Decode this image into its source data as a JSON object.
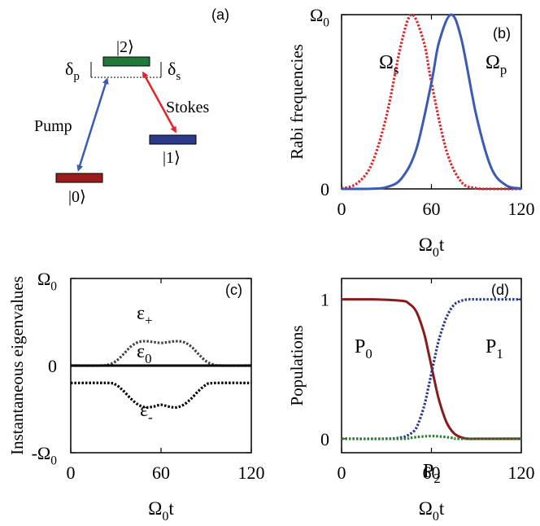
{
  "panel_a": {
    "panel_label": "(a)",
    "level_2": "|2⟩",
    "level_1": "|1⟩",
    "level_0": "|0⟩",
    "delta_p": "δ",
    "delta_p_sub": "p",
    "delta_s": "δ",
    "delta_s_sub": "s",
    "pump_label": "Pump",
    "stokes_label": "Stokes",
    "colors": {
      "level_2": "#1f7a3a",
      "level_1": "#2b3a8f",
      "level_0": "#9b1c1c",
      "pump_arrow": "#3a5bb5",
      "stokes_arrow": "#e0252b"
    }
  },
  "chart_data": [
    {
      "panel": "b",
      "panel_label": "(b)",
      "type": "line",
      "xlabel": "Ω",
      "xlabel_sub": "0",
      "xlabel_tail": "t",
      "ylabel": "Rabi frequencies",
      "xlim": [
        0,
        120
      ],
      "ylim": [
        0,
        1
      ],
      "xticks": [
        0,
        60,
        120
      ],
      "yticks": [
        {
          "value": 0,
          "label": "0"
        },
        {
          "value": 1,
          "label": "Ω",
          "sub": "0"
        }
      ],
      "series": [
        {
          "name": "Ω",
          "name_sub": "s",
          "style": "dotted",
          "color": "#e0252b",
          "x": [
            0,
            10,
            20,
            30,
            40,
            47,
            55,
            60,
            70,
            80,
            90,
            100,
            110,
            120
          ],
          "y": [
            0.003,
            0.03,
            0.14,
            0.42,
            0.84,
            1.0,
            0.84,
            0.61,
            0.22,
            0.04,
            0.004,
            0.0,
            0.0,
            0.0
          ]
        },
        {
          "name": "Ω",
          "name_sub": "p",
          "style": "solid",
          "color": "#3a5bb5",
          "x": [
            0,
            10,
            20,
            30,
            40,
            50,
            60,
            65,
            73,
            80,
            90,
            100,
            110,
            120
          ],
          "y": [
            0.0,
            0.0,
            0.001,
            0.01,
            0.06,
            0.23,
            0.61,
            0.84,
            1.0,
            0.86,
            0.42,
            0.12,
            0.02,
            0.003
          ]
        }
      ]
    },
    {
      "panel": "c",
      "panel_label": "(c)",
      "type": "line",
      "xlabel": "Ω",
      "xlabel_sub": "0",
      "xlabel_tail": "t",
      "ylabel": "Instantaneous eigenvalues",
      "xlim": [
        0,
        120
      ],
      "ylim": [
        -1,
        1
      ],
      "xticks": [
        0,
        60,
        120
      ],
      "yticks": [
        {
          "value": -1,
          "label": "-Ω",
          "sub": "0"
        },
        {
          "value": 0,
          "label": "0"
        },
        {
          "value": 1,
          "label": "Ω",
          "sub": "0"
        }
      ],
      "series": [
        {
          "name": "ε",
          "name_sub": "+",
          "style": "dotted",
          "color": "#444444",
          "x": [
            0,
            20,
            25,
            30,
            35,
            40,
            45,
            50,
            55,
            60,
            65,
            70,
            75,
            80,
            85,
            90,
            95,
            100,
            120
          ],
          "y": [
            0.0,
            0.0,
            0.01,
            0.05,
            0.13,
            0.22,
            0.27,
            0.28,
            0.27,
            0.26,
            0.27,
            0.28,
            0.27,
            0.22,
            0.13,
            0.05,
            0.01,
            0.0,
            0.0
          ]
        },
        {
          "name": "ε",
          "name_sub": "0",
          "style": "solid",
          "color": "#000000",
          "x": [
            0,
            120
          ],
          "y": [
            0.0,
            0.0
          ]
        },
        {
          "name": "ε",
          "name_sub": "-",
          "style": "dotted",
          "color": "#000000",
          "x": [
            0,
            25,
            30,
            35,
            40,
            45,
            50,
            55,
            60,
            65,
            70,
            75,
            80,
            85,
            90,
            95,
            120
          ],
          "y": [
            -0.2,
            -0.2,
            -0.22,
            -0.29,
            -0.38,
            -0.45,
            -0.48,
            -0.47,
            -0.45,
            -0.47,
            -0.48,
            -0.45,
            -0.38,
            -0.29,
            -0.22,
            -0.2,
            -0.2
          ]
        }
      ]
    },
    {
      "panel": "d",
      "panel_label": "(d)",
      "type": "line",
      "xlabel": "Ω",
      "xlabel_sub": "0",
      "xlabel_tail": "t",
      "ylabel": "Populations",
      "xlim": [
        0,
        120
      ],
      "ylim": [
        -0.1,
        1.15
      ],
      "xticks": [
        0,
        60,
        120
      ],
      "yticks": [
        {
          "value": 0,
          "label": "0"
        },
        {
          "value": 1,
          "label": "1"
        }
      ],
      "series": [
        {
          "name": "P",
          "name_sub": "0",
          "style": "solid",
          "color": "#8b1a1a",
          "x": [
            0,
            20,
            40,
            45,
            50,
            55,
            58,
            60,
            62,
            65,
            70,
            75,
            80,
            85,
            90,
            120
          ],
          "y": [
            1.0,
            1.0,
            0.99,
            0.97,
            0.91,
            0.76,
            0.62,
            0.52,
            0.42,
            0.28,
            0.12,
            0.04,
            0.01,
            0.0,
            0.0,
            0.0
          ]
        },
        {
          "name": "P",
          "name_sub": "1",
          "style": "dotted",
          "color": "#2b3a8f",
          "x": [
            0,
            30,
            40,
            45,
            50,
            55,
            58,
            60,
            62,
            65,
            70,
            75,
            80,
            85,
            90,
            120
          ],
          "y": [
            0.0,
            0.0,
            0.01,
            0.03,
            0.08,
            0.23,
            0.37,
            0.47,
            0.57,
            0.71,
            0.87,
            0.96,
            0.99,
            1.0,
            1.0,
            1.0
          ]
        },
        {
          "name": "P",
          "name_sub": "2",
          "style": "dotted",
          "color": "#2e7d32",
          "x": [
            0,
            40,
            45,
            50,
            55,
            60,
            65,
            70,
            75,
            80,
            120
          ],
          "y": [
            0.0,
            0.0,
            0.005,
            0.012,
            0.017,
            0.02,
            0.017,
            0.012,
            0.005,
            0.0,
            0.0
          ]
        }
      ]
    }
  ]
}
